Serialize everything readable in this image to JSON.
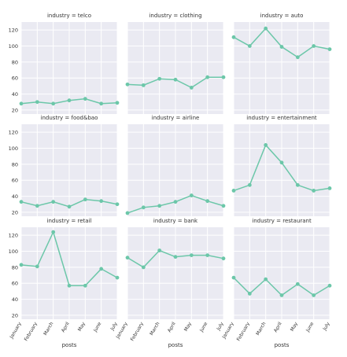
{
  "chart_data": {
    "type": "line",
    "layout": "3x3 facet grid, shared axes",
    "x": [
      "January",
      "February",
      "March",
      "April",
      "May",
      "June",
      "July"
    ],
    "ylim": [
      15,
      130
    ],
    "yticks": [
      20,
      40,
      60,
      80,
      100,
      120
    ],
    "xlabel": "posts",
    "grid": true,
    "line_color": "#6cc7a9",
    "panel_background": "#eaeaf2",
    "grid_color": "#ffffff",
    "panels": [
      {
        "title": "industry = telco",
        "values": [
          28,
          30,
          28,
          32,
          34,
          28,
          29
        ]
      },
      {
        "title": "industry = clothing",
        "values": [
          52,
          51,
          59,
          58,
          48,
          61,
          61
        ]
      },
      {
        "title": "industry = auto",
        "values": [
          111,
          100,
          122,
          99,
          86,
          100,
          96
        ]
      },
      {
        "title": "industry = food&bao",
        "values": [
          33,
          28,
          33,
          27,
          36,
          34,
          30
        ]
      },
      {
        "title": "industry = airline",
        "values": [
          19,
          26,
          28,
          33,
          41,
          34,
          28
        ]
      },
      {
        "title": "industry = entertainment",
        "values": [
          47,
          54,
          104,
          82,
          54,
          47,
          50
        ]
      },
      {
        "title": "industry = retail",
        "values": [
          83,
          81,
          124,
          57,
          57,
          78,
          67
        ]
      },
      {
        "title": "industry = bank",
        "values": [
          92,
          80,
          101,
          93,
          95,
          95,
          91
        ]
      },
      {
        "title": "industry = restaurant",
        "values": [
          67,
          47,
          65,
          45,
          59,
          45,
          57
        ]
      }
    ]
  }
}
